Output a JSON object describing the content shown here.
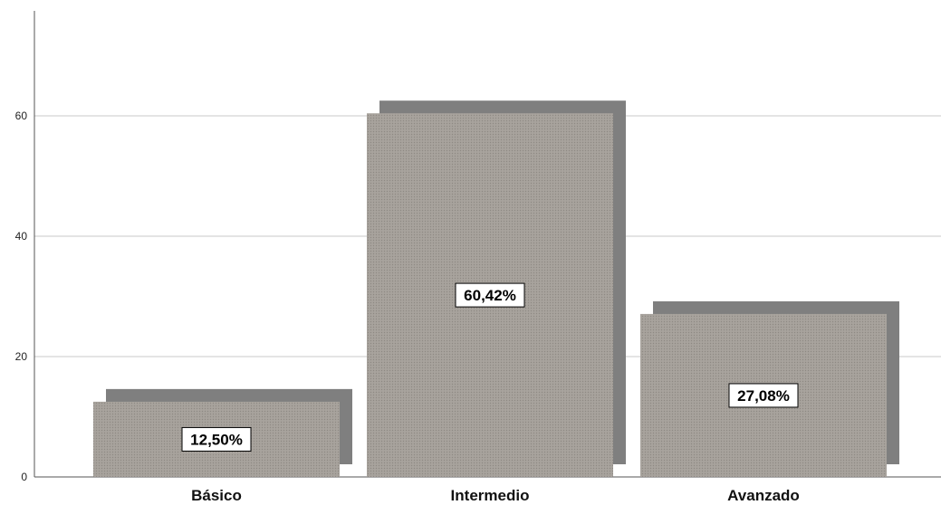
{
  "chart_data": {
    "type": "bar",
    "categories": [
      "Básico",
      "Intermedio",
      "Avanzado"
    ],
    "values": [
      12.5,
      60.42,
      27.08
    ],
    "data_labels": [
      "12,50%",
      "60,42%",
      "27,08%"
    ],
    "yticks": [
      "0",
      "20",
      "40",
      "60"
    ],
    "ylim": [
      0,
      77
    ],
    "grid": true,
    "bar_style": "3d-shadow",
    "colors": {
      "bar_face": "#a8a39d",
      "bar_face_dot": "#8e8983",
      "bar_shadow": "#7f7f7f",
      "grid": "#c8c8c8",
      "axis": "#555555"
    }
  }
}
